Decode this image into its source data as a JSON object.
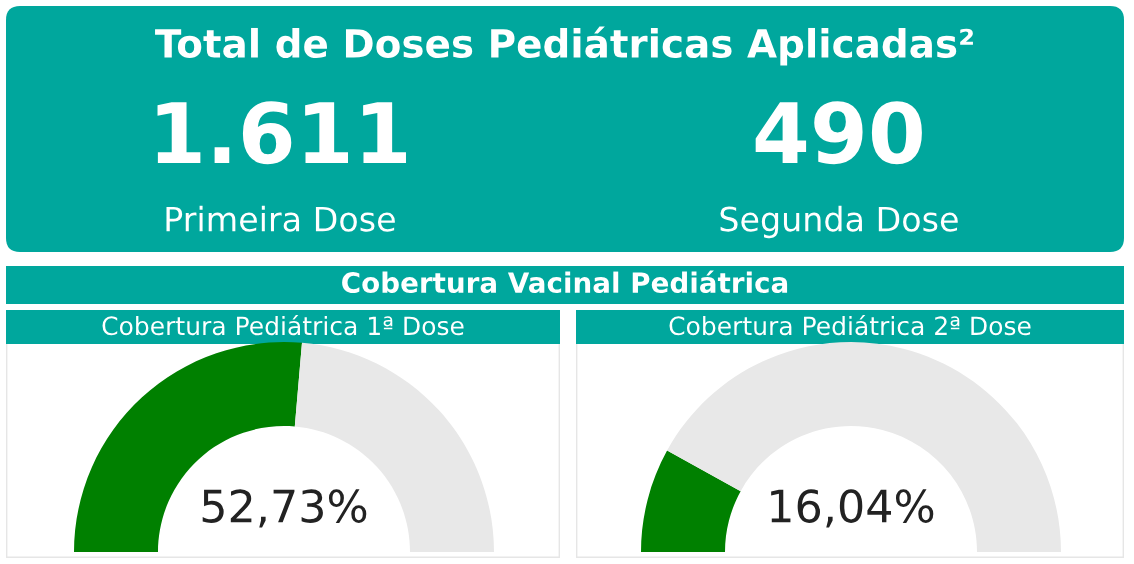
{
  "chart_data": [
    {
      "type": "other",
      "title": "Total de Doses Pediátricas Aplicadas²",
      "annotations": [
        "1.611",
        "Primeira Dose",
        "490",
        "Segunda Dose"
      ]
    },
    {
      "type": "other",
      "title": "Cobertura Vacinal Pediátrica"
    },
    {
      "type": "donut",
      "title": "Cobertura Pediátrica 1ª Dose",
      "categories": [
        null,
        null
      ],
      "values": [
        52.73,
        47.27
      ],
      "colors": [
        "#008000",
        "#e8e8e8"
      ],
      "annotations": [
        "52,73%"
      ]
    },
    {
      "type": "donut",
      "title": "Cobertura Pediátrica 2ª Dose",
      "categories": [
        null,
        null
      ],
      "values": [
        16.04,
        83.96
      ],
      "colors": [
        "#008000",
        "#e8e8e8"
      ],
      "annotations": [
        "16,04%"
      ]
    }
  ]
}
